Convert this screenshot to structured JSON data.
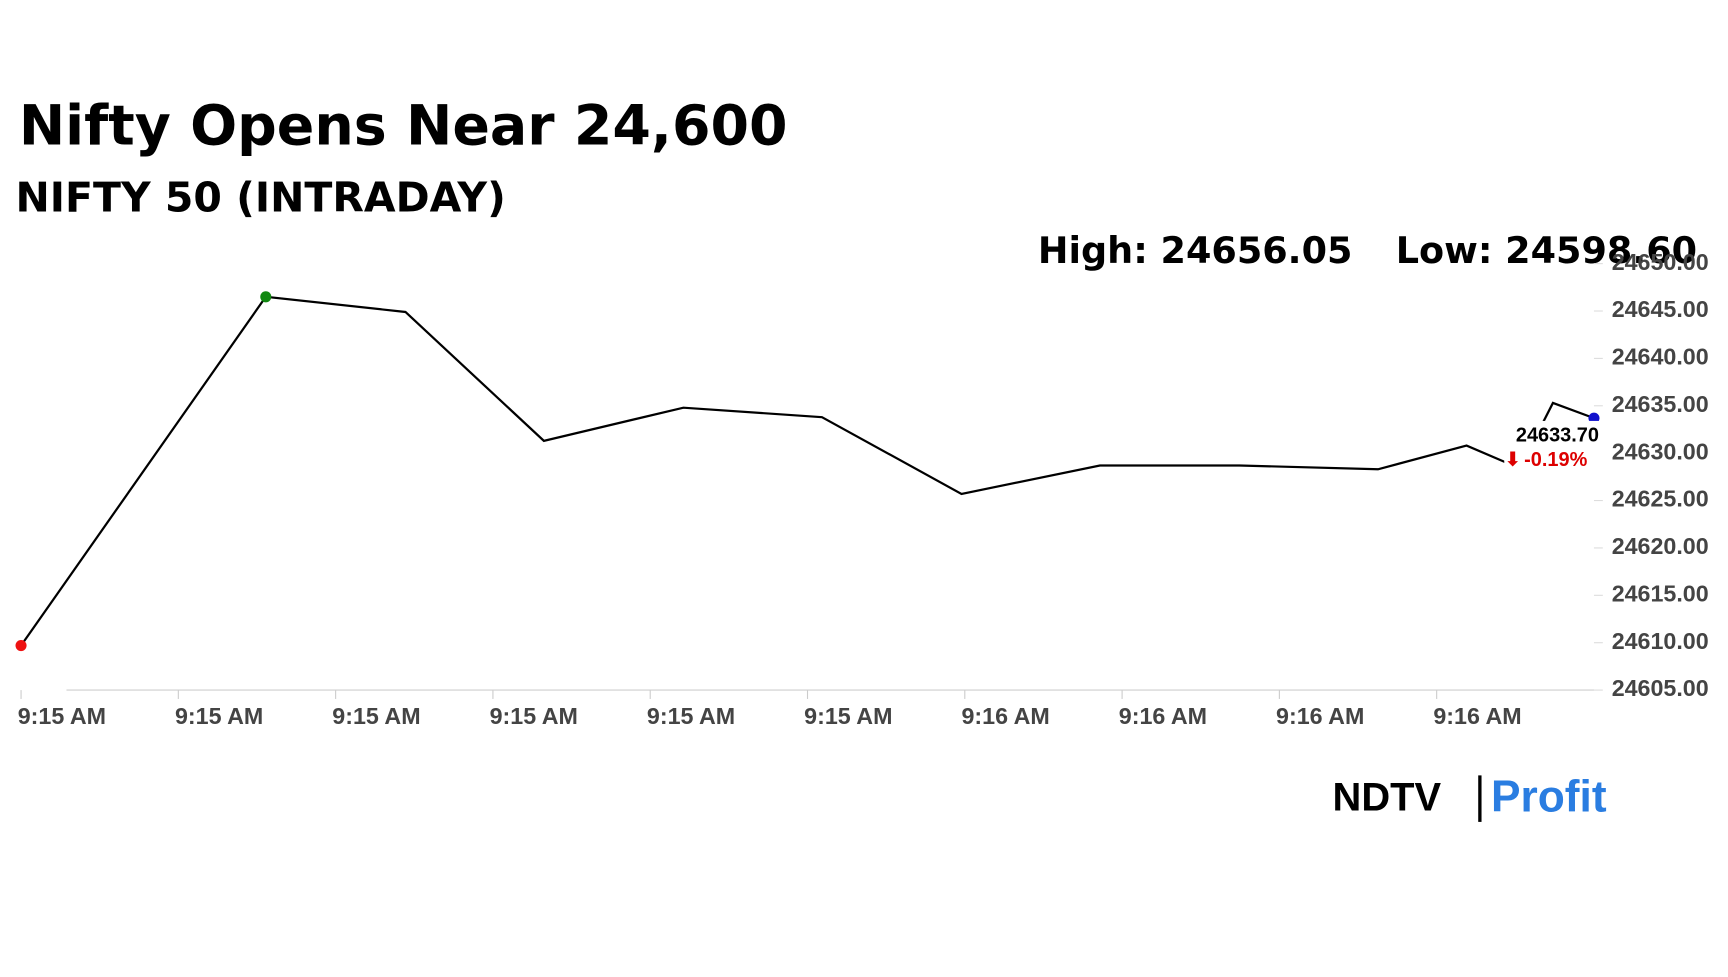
{
  "chart_data": {
    "type": "line",
    "title": "Nifty Opens Near 24,600",
    "subtitle": "NIFTY 50 (INTRADAY)",
    "high": "High: 24656.05",
    "low": "Low: 24598.60",
    "last_label": "24633.70",
    "change": "-0.19%",
    "brand": [
      "NDTV",
      "Profit"
    ],
    "xlim": [
      0,
      10
    ],
    "xticks": [
      {
        "value": 0,
        "label": "9:15 AM"
      },
      {
        "value": 1,
        "label": "9:15 AM"
      },
      {
        "value": 2,
        "label": "9:15 AM"
      },
      {
        "value": 3,
        "label": "9:15 AM"
      },
      {
        "value": 4,
        "label": "9:15 AM"
      },
      {
        "value": 5,
        "label": "9:15 AM"
      },
      {
        "value": 6,
        "label": "9:16 AM"
      },
      {
        "value": 7,
        "label": "9:16 AM"
      },
      {
        "value": 8,
        "label": "9:16 AM"
      },
      {
        "value": 9,
        "label": "9:16 AM"
      }
    ],
    "ylim": [
      24605,
      24650
    ],
    "yticks": [
      {
        "value": 24605,
        "label": "24605.00"
      },
      {
        "value": 24610,
        "label": "24610.00"
      },
      {
        "value": 24615,
        "label": "24615.00"
      },
      {
        "value": 24620,
        "label": "24620.00"
      },
      {
        "value": 24625,
        "label": "24625.00"
      },
      {
        "value": 24630,
        "label": "24630.00"
      },
      {
        "value": 24635,
        "label": "24635.00"
      },
      {
        "value": 24640,
        "label": "24640.00"
      },
      {
        "value": 24645,
        "label": "24645.00"
      },
      {
        "value": 24650,
        "label": "24650.00"
      }
    ],
    "series": [
      {
        "color": "#000000",
        "x": [
          0,
          1.556,
          2.444,
          3.324,
          4.211,
          5.092,
          5.979,
          6.859,
          7.746,
          8.627,
          9.19,
          9.528,
          9.739,
          10
        ],
        "values": [
          24609.7,
          24646.5,
          24644.9,
          24631.3,
          24634.8,
          24633.8,
          24625.7,
          24628.7,
          24628.7,
          24628.3,
          24630.8,
          24628.4,
          24635.3,
          24633.7
        ]
      }
    ],
    "marker_colors": {
      "first": "#ee1111",
      "high": "#118811",
      "last": "#1111cc"
    }
  }
}
